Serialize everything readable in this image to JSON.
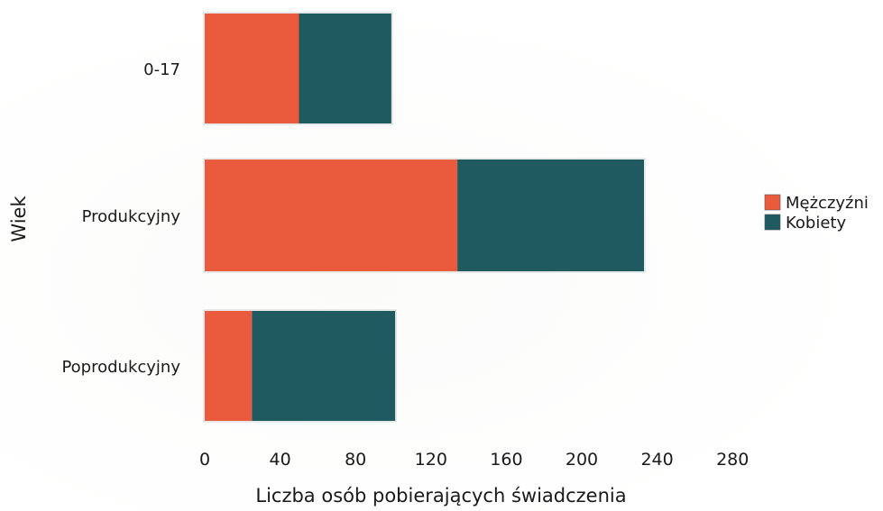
{
  "chart_data": {
    "type": "bar",
    "orientation": "horizontal",
    "stacked": true,
    "categories": [
      "0-17",
      "Produkcyjny",
      "Poprodukcyjny"
    ],
    "series": [
      {
        "name": "Mężczyźni",
        "color": "#ea5a3c",
        "values": [
          50,
          134,
          25
        ]
      },
      {
        "name": "Kobiety",
        "color": "#1f5a61",
        "values": [
          49,
          99,
          76
        ]
      }
    ],
    "xlabel": "Liczba osób pobierających świadczenia",
    "ylabel": "Wiek",
    "xlim": [
      0,
      280
    ],
    "xticks": [
      0,
      40,
      80,
      120,
      160,
      200,
      240,
      280
    ],
    "grid": false,
    "legend_position": "right"
  }
}
